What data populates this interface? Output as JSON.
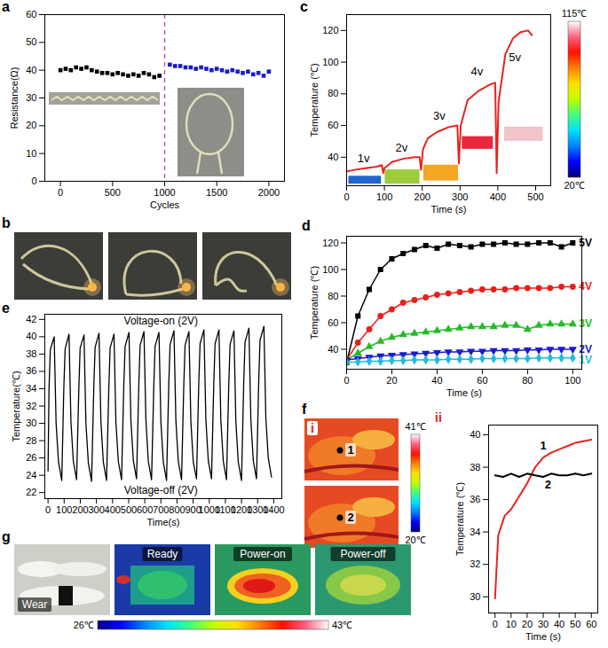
{
  "chart_data": [
    {
      "panel": "a",
      "type": "scatter",
      "x_label": "Cycles",
      "y_label": "Resistance(Ω)",
      "xlim": [
        -150,
        2150
      ],
      "xticks": [
        0,
        500,
        1000,
        1500,
        2000
      ],
      "ylim": [
        0,
        60
      ],
      "yticks": [
        0,
        10,
        20,
        30,
        40,
        50,
        60
      ],
      "series": [
        {
          "color": "#000000",
          "marker": "square",
          "x": [
            0,
            50,
            100,
            150,
            200,
            250,
            300,
            350,
            400,
            450,
            500,
            550,
            600,
            650,
            700,
            750,
            800,
            850,
            900,
            950
          ],
          "values": [
            40,
            40.5,
            40,
            41,
            40.5,
            41,
            40,
            39.5,
            39,
            39,
            38.5,
            39,
            38.5,
            38,
            38.5,
            38,
            39,
            38.5,
            37.5,
            38
          ]
        },
        {
          "color": "#1a1acc",
          "marker": "square",
          "x": [
            1050,
            1100,
            1150,
            1200,
            1250,
            1300,
            1350,
            1400,
            1450,
            1500,
            1550,
            1600,
            1650,
            1700,
            1750,
            1800,
            1850,
            1900,
            1950,
            2000
          ],
          "values": [
            42,
            41.5,
            41.5,
            41,
            41,
            40.5,
            41,
            40.5,
            40,
            40.5,
            40,
            39.5,
            40,
            39.5,
            39,
            39.5,
            38.5,
            39,
            38,
            39.5
          ]
        }
      ],
      "reference_lines": [
        {
          "x": 1000,
          "color": "#c03cc0",
          "line_style": "dashed"
        }
      ]
    },
    {
      "panel": "c",
      "type": "line",
      "x_label": "Time (s)",
      "y_label": "Temperature (℃)",
      "xlim": [
        0,
        540
      ],
      "xticks": [
        0,
        100,
        200,
        300,
        400,
        500
      ],
      "ylim": [
        22,
        130
      ],
      "yticks": [
        40,
        60,
        80,
        100,
        120
      ],
      "series": [
        {
          "color": "#e8231f",
          "x": [
            0,
            20,
            50,
            80,
            93,
            97,
            100,
            120,
            150,
            180,
            193,
            197,
            202,
            215,
            240,
            270,
            293,
            297,
            302,
            320,
            350,
            380,
            393,
            397,
            402,
            420,
            440,
            460,
            480,
            490
          ],
          "values": [
            31,
            32,
            33,
            34,
            35,
            30,
            33,
            37,
            39,
            40,
            40,
            32,
            45,
            52,
            56,
            59,
            60,
            36,
            60,
            76,
            82,
            86,
            87,
            30,
            75,
            105,
            115,
            119,
            120,
            117
          ]
        }
      ],
      "patches": [
        {
          "x": [
            6,
            92
          ],
          "y": [
            23,
            28
          ],
          "color": "#1e64d2"
        },
        {
          "x": [
            102,
            194
          ],
          "y": [
            23,
            32
          ],
          "color": "#9ccc3c"
        },
        {
          "x": [
            204,
            296
          ],
          "y": [
            25,
            35
          ],
          "color": "#f5a623"
        },
        {
          "x": [
            306,
            388
          ],
          "y": [
            45,
            53
          ],
          "color": "#e8283c"
        },
        {
          "x": [
            418,
            520
          ],
          "y": [
            50,
            59
          ],
          "color": "#f0c4c8"
        }
      ],
      "annotations": [
        {
          "text": "1v",
          "x": 45,
          "y": 39
        },
        {
          "text": "2v",
          "x": 145,
          "y": 46
        },
        {
          "text": "3v",
          "x": 245,
          "y": 66
        },
        {
          "text": "4v",
          "x": 345,
          "y": 94
        },
        {
          "text": "5v",
          "x": 445,
          "y": 103
        }
      ],
      "colorbar": {
        "range": [
          20,
          115
        ],
        "ticks": [
          {
            "value": 115,
            "label": "115℃"
          },
          {
            "value": 20,
            "label": "20℃"
          }
        ]
      }
    },
    {
      "panel": "d",
      "type": "line",
      "x_label": "Time (s)",
      "y_label": "Temperature (℃)",
      "xlim": [
        0,
        104
      ],
      "xticks": [
        0,
        20,
        40,
        60,
        80,
        100
      ],
      "ylim": [
        25,
        125
      ],
      "yticks": [
        40,
        60,
        80,
        100,
        120
      ],
      "series": [
        {
          "name": "5V",
          "color": "#000000",
          "marker": "square",
          "x": [
            0,
            5,
            10,
            15,
            20,
            25,
            30,
            35,
            40,
            45,
            50,
            55,
            60,
            65,
            70,
            75,
            80,
            85,
            90,
            95,
            100
          ],
          "values": [
            30,
            65,
            85,
            100,
            108,
            112,
            115,
            118,
            116,
            119,
            118,
            117,
            119,
            119,
            120,
            119,
            119,
            120,
            120,
            117,
            120
          ]
        },
        {
          "name": "4V",
          "color": "#e8201a",
          "marker": "circle",
          "x": [
            0,
            5,
            10,
            15,
            20,
            25,
            30,
            35,
            40,
            45,
            50,
            55,
            60,
            65,
            70,
            75,
            80,
            85,
            90,
            95,
            100
          ],
          "values": [
            32,
            45,
            55,
            65,
            70,
            75,
            77,
            79,
            81,
            82,
            83,
            84,
            85,
            85,
            85,
            86,
            86,
            86,
            86,
            87,
            87
          ]
        },
        {
          "name": "3V",
          "color": "#22bb22",
          "marker": "triangle",
          "x": [
            0,
            5,
            10,
            15,
            20,
            25,
            30,
            35,
            40,
            45,
            50,
            55,
            60,
            65,
            70,
            75,
            80,
            85,
            90,
            95,
            100
          ],
          "values": [
            32,
            37,
            42,
            46,
            49,
            51,
            52,
            53,
            54,
            55,
            56,
            57,
            57,
            57,
            58,
            58,
            55,
            58,
            59,
            59,
            59
          ]
        },
        {
          "name": "2V",
          "color": "#1a1ad0",
          "marker": "triangle-down",
          "x": [
            0,
            5,
            10,
            15,
            20,
            25,
            30,
            35,
            40,
            45,
            50,
            55,
            60,
            65,
            70,
            75,
            80,
            85,
            90,
            95,
            100
          ],
          "values": [
            32,
            33,
            34,
            35,
            35.5,
            36,
            36.5,
            37,
            37.5,
            38,
            38,
            38.5,
            38.5,
            39,
            39,
            39,
            39.5,
            39.5,
            40,
            40,
            40
          ]
        },
        {
          "name": "1V",
          "color": "#22bbe0",
          "marker": "diamond",
          "x": [
            0,
            5,
            10,
            15,
            20,
            25,
            30,
            35,
            40,
            45,
            50,
            55,
            60,
            65,
            70,
            75,
            80,
            85,
            90,
            95,
            100
          ],
          "values": [
            30,
            30.5,
            31,
            31,
            31.5,
            31.5,
            32,
            32,
            32,
            32.5,
            32.5,
            32.5,
            33,
            33,
            33,
            33,
            33,
            33.5,
            33.5,
            33.5,
            33.5
          ]
        }
      ]
    },
    {
      "panel": "e",
      "type": "line",
      "x_label": "Time(s)",
      "y_label": "Temperature(℃)",
      "xlim": [
        -20,
        1450
      ],
      "xticks": [
        0,
        100,
        200,
        300,
        400,
        500,
        600,
        700,
        800,
        900,
        1000,
        1100,
        1200,
        1300,
        1400
      ],
      "ylim": [
        21.3,
        42.6
      ],
      "yticks": [
        22,
        24,
        26,
        28,
        30,
        32,
        34,
        36,
        38,
        40,
        42
      ],
      "series": [
        {
          "color": "#000000",
          "x": [
            0,
            6,
            14,
            38,
            50,
            65,
            85,
            98,
            106,
            130,
            142,
            157,
            177,
            191,
            199,
            223,
            235,
            250,
            270,
            284,
            292,
            316,
            328,
            343,
            363,
            377,
            385,
            409,
            421,
            436,
            456,
            470,
            478,
            502,
            514,
            529,
            549,
            563,
            571,
            595,
            607,
            622,
            642,
            656,
            664,
            688,
            700,
            715,
            735,
            749,
            757,
            781,
            793,
            808,
            828,
            842,
            850,
            874,
            886,
            901,
            921,
            935,
            943,
            967,
            979,
            994,
            1014,
            1028,
            1036,
            1060,
            1072,
            1087,
            1107,
            1121,
            1129,
            1153,
            1165,
            1180,
            1200,
            1214,
            1222,
            1246,
            1258,
            1273,
            1293,
            1307,
            1315,
            1339,
            1351,
            1366,
            1386
          ],
          "values": [
            24.5,
            34,
            38.5,
            40,
            30,
            25.5,
            23.4,
            34.2,
            38.6,
            40.3,
            30.2,
            25.6,
            23.5,
            34,
            38.7,
            40.2,
            30,
            25.4,
            23.3,
            34.3,
            38.8,
            40.4,
            30.2,
            25.5,
            23.4,
            34.1,
            38.7,
            40.3,
            30.1,
            25.6,
            23.5,
            34.4,
            38.9,
            40.5,
            30.3,
            25.7,
            23.6,
            34.5,
            39,
            40.6,
            30.4,
            25.6,
            23.5,
            34.3,
            38.9,
            40.5,
            30.2,
            25.5,
            23.4,
            34.6,
            39.1,
            40.7,
            30.3,
            25.6,
            23.5,
            34.4,
            39,
            40.6,
            30.2,
            25.5,
            23.6,
            34.7,
            39.2,
            40.8,
            30.4,
            25.7,
            23.6,
            34.6,
            39.2,
            40.8,
            30.3,
            25.6,
            23.5,
            34.5,
            39.1,
            40.7,
            30.2,
            25.5,
            23.4,
            34.8,
            39.4,
            41,
            30.4,
            25.7,
            23.6,
            35,
            39.6,
            41.2,
            30.6,
            26,
            23.8
          ]
        }
      ],
      "annotations": [
        {
          "text": "Voltage-on (2V)",
          "x": 700,
          "y": 41.8
        },
        {
          "text": "Voltage-off (2V)",
          "x": 700,
          "y": 22.3
        }
      ]
    },
    {
      "panel": "f",
      "subpanel": "ii",
      "type": "line",
      "x_label": "Time (s)",
      "y_label": "Temperature (℃)",
      "xlim": [
        -4,
        64
      ],
      "xticks": [
        0,
        10,
        20,
        30,
        40,
        50,
        60
      ],
      "ylim": [
        29,
        40.6
      ],
      "yticks": [
        30,
        32,
        34,
        36,
        38,
        40
      ],
      "series": [
        {
          "color": "#e8231f",
          "x": [
            0,
            2,
            6,
            10,
            15,
            20,
            25,
            30,
            35,
            40,
            45,
            50,
            55,
            60
          ],
          "values": [
            29.9,
            33.8,
            35,
            35.4,
            36.2,
            37,
            38,
            38.6,
            38.9,
            39.1,
            39.3,
            39.5,
            39.6,
            39.7
          ]
        },
        {
          "color": "#000000",
          "x": [
            0,
            5,
            10,
            15,
            20,
            25,
            30,
            35,
            40,
            45,
            50,
            55,
            60
          ],
          "values": [
            37.5,
            37.4,
            37.6,
            37.4,
            37.6,
            37.5,
            37.4,
            37.6,
            37.5,
            37.5,
            37.6,
            37.5,
            37.6
          ]
        }
      ],
      "annotations": [
        {
          "text": "1",
          "x": 30,
          "y": 39.3
        },
        {
          "text": "2",
          "x": 33,
          "y": 36.9
        }
      ]
    }
  ],
  "images": [
    {
      "panel": "b"
    },
    {
      "panel": "f",
      "subpanel": "i",
      "markers": [
        "1",
        "2"
      ],
      "colorbar": {
        "range": [
          20,
          41
        ],
        "ticks": [
          {
            "value": 41,
            "label": "41℃"
          },
          {
            "value": 20,
            "label": "20℃"
          }
        ]
      }
    },
    {
      "panel": "g",
      "frames": [
        "Wear",
        "Ready",
        "Power-on",
        "Power-off"
      ],
      "colorbar": {
        "range": [
          26,
          43
        ],
        "ticks": [
          {
            "value": 26,
            "label": "26℃"
          },
          {
            "value": 43,
            "label": "43℃"
          }
        ]
      }
    }
  ]
}
